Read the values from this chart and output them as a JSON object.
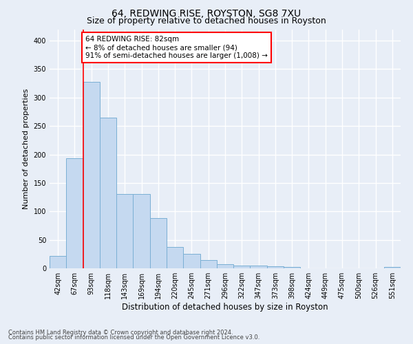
{
  "title": "64, REDWING RISE, ROYSTON, SG8 7XU",
  "subtitle": "Size of property relative to detached houses in Royston",
  "xlabel": "Distribution of detached houses by size in Royston",
  "ylabel": "Number of detached properties",
  "bar_color": "#c5d9f0",
  "bar_edge_color": "#7aafd4",
  "categories": [
    "42sqm",
    "67sqm",
    "93sqm",
    "118sqm",
    "143sqm",
    "169sqm",
    "194sqm",
    "220sqm",
    "245sqm",
    "271sqm",
    "296sqm",
    "322sqm",
    "347sqm",
    "373sqm",
    "398sqm",
    "424sqm",
    "449sqm",
    "475sqm",
    "500sqm",
    "526sqm",
    "551sqm"
  ],
  "values": [
    22,
    193,
    328,
    265,
    130,
    130,
    88,
    38,
    25,
    14,
    7,
    5,
    5,
    4,
    3,
    0,
    0,
    0,
    0,
    0,
    3
  ],
  "ylim": [
    0,
    420
  ],
  "yticks": [
    0,
    50,
    100,
    150,
    200,
    250,
    300,
    350,
    400
  ],
  "redline_x": 1.5,
  "annotation_text": "64 REDWING RISE: 82sqm\n← 8% of detached houses are smaller (94)\n91% of semi-detached houses are larger (1,008) →",
  "footer_line1": "Contains HM Land Registry data © Crown copyright and database right 2024.",
  "footer_line2": "Contains public sector information licensed under the Open Government Licence v3.0.",
  "bg_color": "#e8eef7",
  "plot_bg_color": "#e8eef7",
  "grid_color": "#ffffff",
  "title_fontsize": 10,
  "subtitle_fontsize": 9,
  "tick_fontsize": 7,
  "ylabel_fontsize": 8,
  "xlabel_fontsize": 8.5,
  "footer_fontsize": 6,
  "annotation_fontsize": 7.5
}
